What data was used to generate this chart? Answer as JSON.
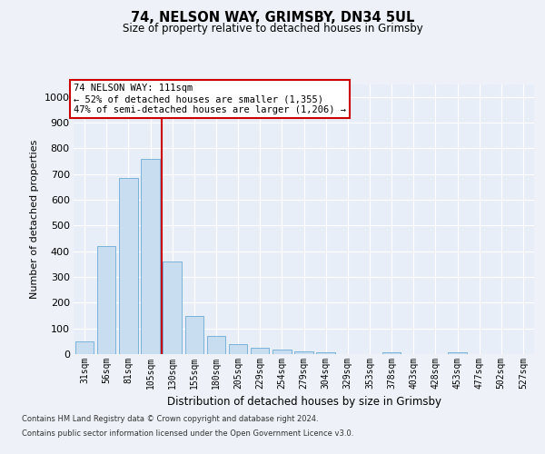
{
  "title1": "74, NELSON WAY, GRIMSBY, DN34 5UL",
  "title2": "Size of property relative to detached houses in Grimsby",
  "xlabel": "Distribution of detached houses by size in Grimsby",
  "ylabel": "Number of detached properties",
  "categories": [
    "31sqm",
    "56sqm",
    "81sqm",
    "105sqm",
    "130sqm",
    "155sqm",
    "180sqm",
    "205sqm",
    "229sqm",
    "254sqm",
    "279sqm",
    "304sqm",
    "329sqm",
    "353sqm",
    "378sqm",
    "403sqm",
    "428sqm",
    "453sqm",
    "477sqm",
    "502sqm",
    "527sqm"
  ],
  "values": [
    50,
    420,
    685,
    760,
    360,
    150,
    70,
    38,
    25,
    17,
    12,
    8,
    0,
    0,
    8,
    0,
    0,
    8,
    0,
    0,
    0
  ],
  "bar_color": "#c9ddf0",
  "bar_edge_color": "#6aaad4",
  "vline_x": 3.5,
  "vline_color": "#cc0000",
  "annotation_text": "74 NELSON WAY: 111sqm\n← 52% of detached houses are smaller (1,355)\n47% of semi-detached houses are larger (1,206) →",
  "annotation_box_color": "#ffffff",
  "annotation_box_edge": "#cc0000",
  "footnote1": "Contains HM Land Registry data © Crown copyright and database right 2024.",
  "footnote2": "Contains public sector information licensed under the Open Government Licence v3.0.",
  "ylim": [
    0,
    1050
  ],
  "yticks": [
    0,
    100,
    200,
    300,
    400,
    500,
    600,
    700,
    800,
    900,
    1000
  ],
  "bg_color": "#eef2f8",
  "plot_bg_color": "#e8eef8"
}
